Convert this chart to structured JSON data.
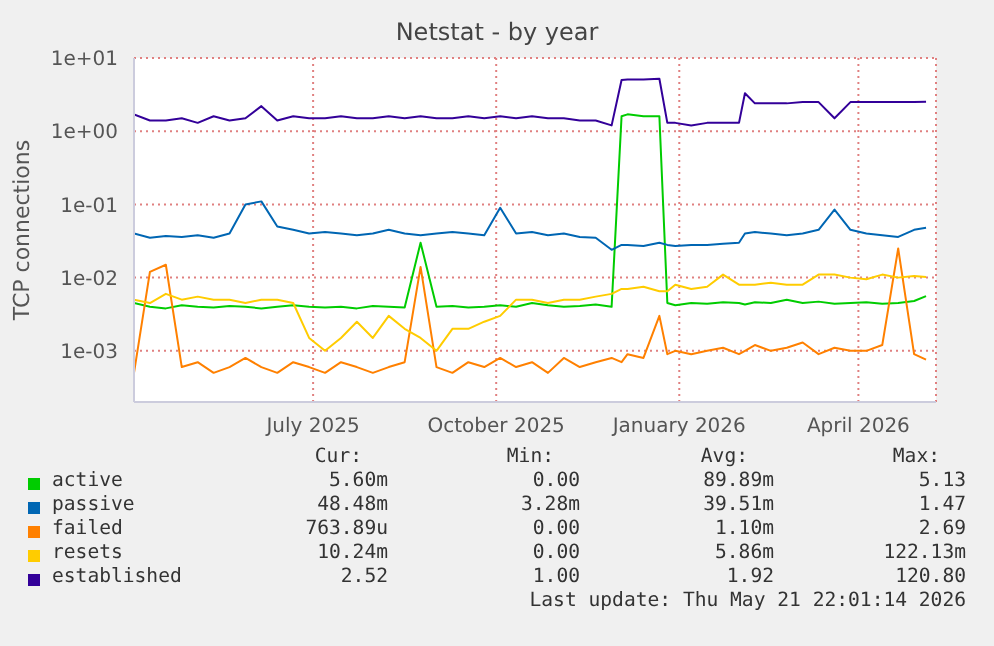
{
  "chart_data": {
    "type": "line",
    "title": "Netstat - by year",
    "ylabel": "TCP connections",
    "log": "y",
    "grid": true,
    "legend": "bottom",
    "xlim": [
      "2025-04-02",
      "2026-05-10"
    ],
    "xticks": [
      {
        "value": "2025-07-01",
        "label": "July 2025"
      },
      {
        "value": "2025-10-01",
        "label": "October 2025"
      },
      {
        "value": "2026-01-01",
        "label": "January 2026"
      },
      {
        "value": "2026-04-01",
        "label": "April 2026"
      }
    ],
    "ylim": [
      0.0002,
      10
    ],
    "yticks": [
      {
        "value": 0.001,
        "label": "1e-03"
      },
      {
        "value": 0.01,
        "label": "1e-02"
      },
      {
        "value": 0.1,
        "label": "1e-01"
      },
      {
        "value": 1,
        "label": "1e+00"
      },
      {
        "value": 10,
        "label": "1e+01"
      }
    ],
    "x": [
      "2025-04-02",
      "2025-04-10",
      "2025-04-18",
      "2025-04-26",
      "2025-05-04",
      "2025-05-12",
      "2025-05-20",
      "2025-05-28",
      "2025-06-05",
      "2025-06-13",
      "2025-06-21",
      "2025-06-29",
      "2025-07-07",
      "2025-07-15",
      "2025-07-23",
      "2025-07-31",
      "2025-08-08",
      "2025-08-16",
      "2025-08-24",
      "2025-09-01",
      "2025-09-09",
      "2025-09-17",
      "2025-09-25",
      "2025-10-03",
      "2025-10-11",
      "2025-10-19",
      "2025-10-27",
      "2025-11-04",
      "2025-11-12",
      "2025-11-20",
      "2025-11-28",
      "2025-12-03",
      "2025-12-06",
      "2025-12-14",
      "2025-12-22",
      "2025-12-26",
      "2025-12-30",
      "2026-01-07",
      "2026-01-15",
      "2026-01-23",
      "2026-01-31",
      "2026-02-03",
      "2026-02-08",
      "2026-02-16",
      "2026-02-24",
      "2026-03-04",
      "2026-03-12",
      "2026-03-20",
      "2026-03-28",
      "2026-04-05",
      "2026-04-13",
      "2026-04-21",
      "2026-04-29",
      "2026-05-05"
    ],
    "series": [
      {
        "name": "active",
        "color": "#00cc00",
        "values": [
          0.0045,
          0.004,
          0.0038,
          0.0042,
          0.004,
          0.0039,
          0.0041,
          0.004,
          0.0038,
          0.004,
          0.0042,
          0.004,
          0.0039,
          0.004,
          0.0038,
          0.0041,
          0.004,
          0.0039,
          0.03,
          0.004,
          0.0041,
          0.0039,
          0.004,
          0.0042,
          0.004,
          0.0045,
          0.0042,
          0.004,
          0.0041,
          0.0043,
          0.004,
          1.6,
          1.7,
          1.6,
          1.6,
          0.0045,
          0.0042,
          0.0045,
          0.0044,
          0.0046,
          0.0045,
          0.0043,
          0.0046,
          0.0045,
          0.005,
          0.0045,
          0.0047,
          0.0044,
          0.0045,
          0.0046,
          0.0044,
          0.0045,
          0.0048,
          0.0056
        ]
      },
      {
        "name": "passive",
        "color": "#0066b3",
        "values": [
          0.04,
          0.035,
          0.037,
          0.036,
          0.038,
          0.035,
          0.04,
          0.1,
          0.11,
          0.05,
          0.045,
          0.04,
          0.042,
          0.04,
          0.038,
          0.04,
          0.045,
          0.04,
          0.038,
          0.04,
          0.042,
          0.04,
          0.038,
          0.09,
          0.04,
          0.042,
          0.038,
          0.04,
          0.036,
          0.035,
          0.024,
          0.028,
          0.028,
          0.027,
          0.03,
          0.028,
          0.027,
          0.028,
          0.028,
          0.029,
          0.03,
          0.04,
          0.042,
          0.04,
          0.038,
          0.04,
          0.045,
          0.085,
          0.045,
          0.04,
          0.038,
          0.036,
          0.045,
          0.048
        ]
      },
      {
        "name": "failed",
        "color": "#ff8000",
        "values": [
          0.0005,
          0.012,
          0.015,
          0.0006,
          0.0007,
          0.0005,
          0.0006,
          0.0008,
          0.0006,
          0.0005,
          0.0007,
          0.0006,
          0.0005,
          0.0007,
          0.0006,
          0.0005,
          0.0006,
          0.0007,
          0.014,
          0.0006,
          0.0005,
          0.0007,
          0.0006,
          0.0008,
          0.0006,
          0.0007,
          0.0005,
          0.0008,
          0.0006,
          0.0007,
          0.0008,
          0.0007,
          0.0009,
          0.0008,
          0.003,
          0.0009,
          0.001,
          0.0009,
          0.001,
          0.0011,
          0.0009,
          0.001,
          0.0012,
          0.001,
          0.0011,
          0.0013,
          0.0009,
          0.0011,
          0.001,
          0.001,
          0.0012,
          0.025,
          0.0009,
          0.00076
        ]
      },
      {
        "name": "resets",
        "color": "#ffcc00",
        "values": [
          0.005,
          0.0045,
          0.006,
          0.005,
          0.0055,
          0.005,
          0.005,
          0.0045,
          0.005,
          0.005,
          0.0045,
          0.0015,
          0.001,
          0.0015,
          0.0025,
          0.0015,
          0.003,
          0.002,
          0.0015,
          0.001,
          0.002,
          0.002,
          0.0025,
          0.003,
          0.005,
          0.005,
          0.0045,
          0.005,
          0.005,
          0.0055,
          0.006,
          0.007,
          0.007,
          0.0075,
          0.0065,
          0.0065,
          0.008,
          0.007,
          0.0075,
          0.011,
          0.008,
          0.008,
          0.008,
          0.0085,
          0.008,
          0.008,
          0.011,
          0.011,
          0.01,
          0.0095,
          0.011,
          0.01,
          0.0105,
          0.0102
        ]
      },
      {
        "name": "established",
        "color": "#330099",
        "values": [
          1.7,
          1.4,
          1.4,
          1.5,
          1.3,
          1.6,
          1.4,
          1.5,
          2.2,
          1.4,
          1.6,
          1.5,
          1.5,
          1.6,
          1.5,
          1.5,
          1.6,
          1.5,
          1.6,
          1.5,
          1.5,
          1.6,
          1.5,
          1.6,
          1.5,
          1.6,
          1.5,
          1.5,
          1.4,
          1.4,
          1.2,
          5.0,
          5.1,
          5.1,
          5.2,
          1.3,
          1.3,
          1.2,
          1.3,
          1.3,
          1.3,
          3.3,
          2.4,
          2.4,
          2.4,
          2.5,
          2.5,
          1.5,
          2.5,
          2.5,
          2.5,
          2.5,
          2.5,
          2.52
        ]
      }
    ],
    "annotations": [
      "Cur:",
      "Min:",
      "Avg:",
      "Max:",
      "5.60m",
      "0.00",
      "89.89m",
      "5.13",
      "48.48m",
      "3.28m",
      "39.51m",
      "1.47",
      "763.89u",
      "0.00",
      "1.10m",
      "2.69",
      "10.24m",
      "0.00",
      "5.86m",
      "122.13m",
      "2.52",
      "1.00",
      "1.92",
      "120.80",
      "Last update: Thu May 21 22:01:14 2026"
    ]
  }
}
